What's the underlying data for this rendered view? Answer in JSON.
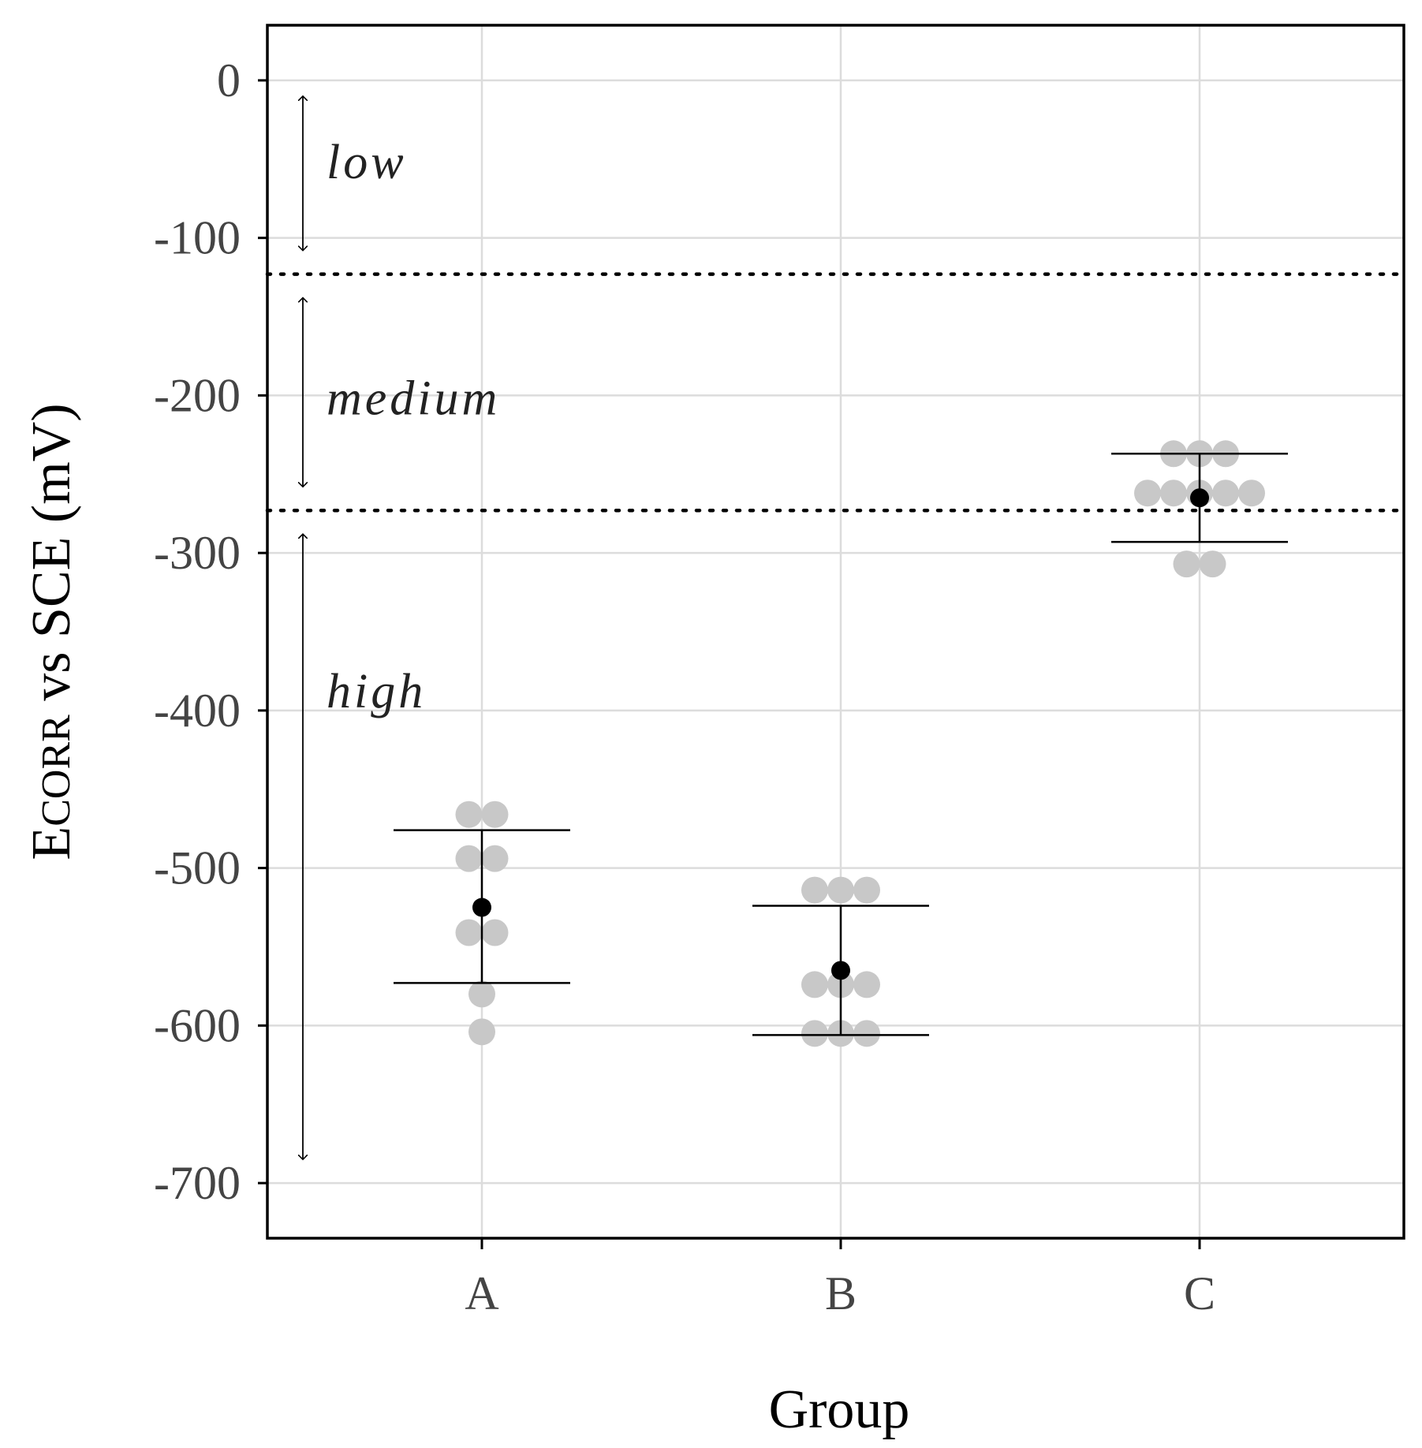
{
  "chart_data": {
    "type": "scatter",
    "title": "",
    "xlabel": "Group",
    "ylabel": {
      "main": "E",
      "sub": "CORR",
      "rest": " vs SCE (mV)"
    },
    "categories": [
      "A",
      "B",
      "C"
    ],
    "ylim": [
      -735,
      35
    ],
    "yticks": [
      0,
      -100,
      -200,
      -300,
      -400,
      -500,
      -600,
      -700
    ],
    "ytick_labels": [
      "0",
      "-100",
      "-200",
      "-300",
      "-400",
      "-500",
      "-600",
      "-700"
    ],
    "grid": true,
    "points": [
      {
        "group": "A",
        "values": [
          -466,
          -466,
          -494,
          -494,
          -541,
          -541,
          -580,
          -604
        ]
      },
      {
        "group": "B",
        "values": [
          -514,
          -514,
          -514,
          -574,
          -574,
          -574,
          -605,
          -605,
          -605
        ]
      },
      {
        "group": "C",
        "values": [
          -237,
          -237,
          -237,
          -262,
          -262,
          -262,
          -262,
          -262,
          -307,
          -307
        ]
      }
    ],
    "summary": [
      {
        "group": "A",
        "mean": -525,
        "lower": -573,
        "upper": -476
      },
      {
        "group": "B",
        "mean": -565,
        "lower": -606,
        "upper": -524
      },
      {
        "group": "C",
        "mean": -265,
        "lower": -293,
        "upper": -237
      }
    ],
    "thresholds": [
      -123,
      -273
    ],
    "zones": [
      {
        "label": "low",
        "from": -10,
        "to": -108,
        "text_at": -52
      },
      {
        "label": "medium",
        "from": -138,
        "to": -258,
        "text_at": -202
      },
      {
        "label": "high",
        "from": -288,
        "to": -685,
        "text_at": -388
      }
    ],
    "colors": {
      "points": "#c8c8c8",
      "mean": "#000000",
      "grid": "#dcdcdc"
    }
  }
}
